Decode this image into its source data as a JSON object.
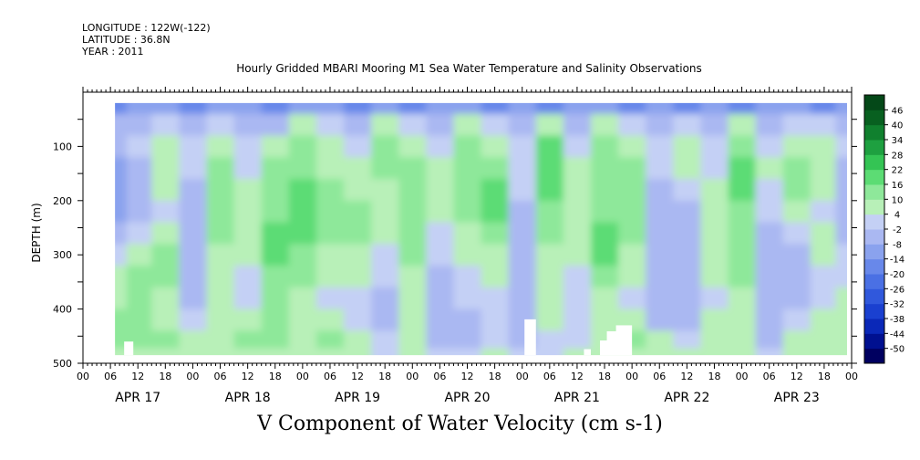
{
  "header": {
    "lines": [
      "LONGITUDE : 122W(-122)",
      "LATITUDE : 36.8N",
      "YEAR : 2011"
    ],
    "title": "Hourly Gridded MBARI Mooring M1 Sea Water Temperature and Salinity Observations"
  },
  "chart_data": {
    "type": "heatmap",
    "title": "V Component of Water Velocity (cm s-1)",
    "ylabel": "DEPTH (m)",
    "xlabel": "",
    "ylim": [
      500,
      0
    ],
    "y_ticks": [
      100,
      200,
      300,
      400,
      500
    ],
    "x_range_hours": [
      0,
      168
    ],
    "x_hour_ticks": [
      "00",
      "06",
      "12",
      "18",
      "00",
      "06",
      "12",
      "18",
      "00",
      "06",
      "12",
      "18",
      "00",
      "06",
      "12",
      "18",
      "00",
      "06",
      "12",
      "18",
      "00",
      "06",
      "12",
      "18",
      "00",
      "06",
      "12",
      "18",
      "00"
    ],
    "x_day_labels": [
      "APR 17",
      "APR 18",
      "APR 19",
      "APR 20",
      "APR 21",
      "APR 22",
      "APR 23"
    ],
    "data_extent": {
      "time_start_hours": 7,
      "time_end_hours": 167,
      "depth_top": 20,
      "depth_bottom": 485
    },
    "colorbar": {
      "levels": [
        -50,
        -44,
        -38,
        -32,
        -26,
        -20,
        -14,
        -8,
        -2,
        4,
        10,
        16,
        22,
        28,
        34,
        40,
        46
      ],
      "colors": [
        "#000060",
        "#001090",
        "#0a28b8",
        "#1a40d0",
        "#3058dc",
        "#4a70e4",
        "#6888ea",
        "#8aa2ee",
        "#aab8f2",
        "#c4d0f5",
        "#b8f0b8",
        "#8ee89a",
        "#5cdc74",
        "#34c454",
        "#1ea040",
        "#10802e",
        "#086020",
        "#044818"
      ]
    },
    "description_grid": {
      "times_hours": [
        7,
        12,
        18,
        24,
        30,
        36,
        42,
        48,
        54,
        60,
        66,
        72,
        78,
        84,
        90,
        96,
        102,
        108,
        114,
        120,
        126,
        132,
        138,
        144,
        150,
        156,
        162,
        167
      ],
      "depths_m": [
        20,
        60,
        100,
        140,
        180,
        220,
        260,
        300,
        340,
        380,
        420,
        460,
        485
      ],
      "values": [
        [
          -20,
          -14,
          -14,
          -20,
          -14,
          -14,
          -20,
          -14,
          -14,
          -20,
          -14,
          -20,
          -14,
          -14,
          -20,
          -14,
          -20,
          -14,
          -14,
          -20,
          -14,
          -20,
          -14,
          -20,
          -14,
          -14,
          -20,
          -14
        ],
        [
          -8,
          -8,
          -2,
          -8,
          -2,
          -8,
          -8,
          4,
          -2,
          -8,
          4,
          -2,
          -8,
          4,
          -2,
          -8,
          4,
          -8,
          4,
          -2,
          -8,
          -2,
          -8,
          4,
          -8,
          -2,
          -2,
          -8
        ],
        [
          -8,
          -2,
          4,
          -2,
          4,
          -2,
          4,
          10,
          4,
          -2,
          10,
          4,
          -2,
          10,
          4,
          -2,
          16,
          -2,
          10,
          4,
          -2,
          4,
          -2,
          10,
          -2,
          4,
          4,
          -2
        ],
        [
          -14,
          -8,
          4,
          -2,
          10,
          -2,
          10,
          10,
          4,
          4,
          10,
          10,
          4,
          10,
          10,
          -2,
          16,
          4,
          10,
          10,
          -2,
          4,
          -2,
          16,
          4,
          10,
          4,
          -8
        ],
        [
          -14,
          -8,
          4,
          -8,
          10,
          4,
          10,
          16,
          10,
          4,
          4,
          10,
          4,
          10,
          16,
          -2,
          16,
          4,
          10,
          10,
          -8,
          -2,
          4,
          16,
          -2,
          10,
          4,
          -8
        ],
        [
          -14,
          -8,
          -2,
          -8,
          10,
          4,
          10,
          16,
          10,
          10,
          4,
          10,
          4,
          10,
          16,
          -8,
          10,
          4,
          10,
          10,
          -8,
          -8,
          4,
          10,
          -2,
          4,
          -2,
          -8
        ],
        [
          -8,
          -2,
          4,
          -8,
          10,
          4,
          16,
          16,
          10,
          10,
          4,
          10,
          -2,
          4,
          10,
          -8,
          10,
          4,
          16,
          10,
          -8,
          -8,
          4,
          10,
          -8,
          -2,
          4,
          -8
        ],
        [
          -2,
          4,
          10,
          -8,
          4,
          4,
          16,
          10,
          4,
          4,
          -2,
          10,
          -2,
          4,
          4,
          -8,
          4,
          4,
          16,
          4,
          -8,
          -8,
          4,
          10,
          -8,
          -8,
          4,
          -2
        ],
        [
          4,
          10,
          10,
          -8,
          4,
          -2,
          10,
          10,
          4,
          4,
          -2,
          4,
          -8,
          -2,
          4,
          -8,
          4,
          -2,
          10,
          4,
          -8,
          -8,
          4,
          10,
          -8,
          -8,
          -2,
          -2
        ],
        [
          4,
          10,
          4,
          -8,
          4,
          -2,
          10,
          4,
          -2,
          -2,
          -8,
          4,
          -8,
          -2,
          -2,
          -8,
          4,
          -2,
          4,
          -2,
          -8,
          -8,
          -2,
          4,
          -8,
          -8,
          -2,
          4
        ],
        [
          10,
          10,
          4,
          -2,
          4,
          4,
          10,
          4,
          4,
          -2,
          -8,
          4,
          -8,
          -8,
          -2,
          -8,
          4,
          -2,
          4,
          4,
          -8,
          -8,
          4,
          4,
          -8,
          -2,
          4,
          4
        ],
        [
          10,
          10,
          10,
          4,
          4,
          10,
          10,
          4,
          10,
          4,
          -2,
          4,
          -8,
          -8,
          -2,
          -8,
          -2,
          -2,
          4,
          10,
          4,
          -2,
          4,
          4,
          -8,
          4,
          4,
          4
        ],
        [
          4,
          4,
          4,
          4,
          4,
          4,
          4,
          4,
          4,
          4,
          -2,
          4,
          -2,
          -2,
          4,
          -2,
          -2,
          4,
          4,
          4,
          4,
          4,
          4,
          4,
          -2,
          4,
          4,
          4
        ]
      ]
    }
  }
}
